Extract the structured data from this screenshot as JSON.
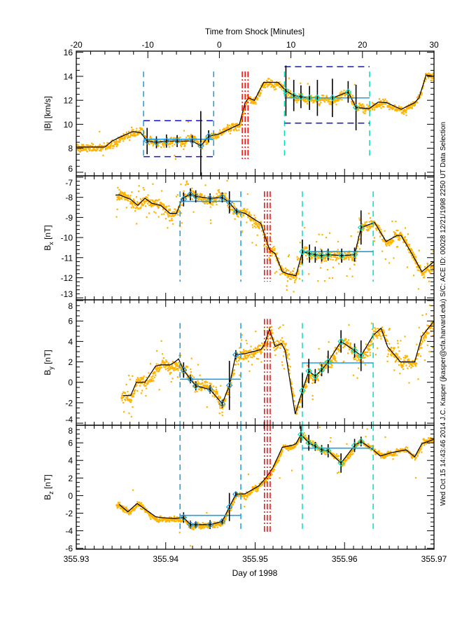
{
  "chart_data": {
    "type": "line",
    "top_axis": {
      "title": "Time from Shock [Minutes]",
      "range": [
        -20,
        30
      ],
      "ticks": [
        "-20",
        "-10",
        "0",
        "10",
        "20",
        "30"
      ]
    },
    "bottom_axis": {
      "title": "Day of 1998",
      "range": [
        355.93,
        355.97
      ],
      "ticks": [
        "355.93",
        "355.94",
        "355.95",
        "355.96",
        "355.97"
      ]
    },
    "x_units": "minutes from shock",
    "footer": "Wed Oct 15 14:43:46 2014   J.C. Kasper (jkasper@cfa.harvard.edu)   S/C: ACE ID: 00028 12/21/1998   2250 UT Data Selection",
    "colors": {
      "scatter": "#FFB300",
      "line": "#000000",
      "upstream": "#1E9BE0",
      "downstream": "#00E0C4",
      "box": "#1010E8",
      "shock": "#FF0000"
    },
    "panels": [
      {
        "ylabel_main": "|B|",
        "ylabel_sub": "",
        "ylabel_unit": "[km/s]",
        "ylim": [
          5.7,
          16.1
        ],
        "yticks": [
          "6",
          "8",
          "10",
          "12",
          "14",
          "16"
        ],
        "scatter": {
          "x_range": [
            -20,
            30
          ],
          "spread": 0.3,
          "outliers": 0.01
        },
        "line": [
          [
            -20,
            8.1
          ],
          [
            -16,
            8.1
          ],
          [
            -15,
            8.6
          ],
          [
            -14,
            8.9
          ],
          [
            -12.1,
            9.4
          ],
          [
            -11,
            9.3
          ],
          [
            -10.1,
            8.6
          ],
          [
            -8.8,
            8.5
          ],
          [
            -7.4,
            8.6
          ],
          [
            -5.9,
            8.6
          ],
          [
            -3.8,
            8.6
          ],
          [
            -2.6,
            8.2
          ],
          [
            -1.5,
            9.0
          ],
          [
            0,
            9.2
          ],
          [
            2.8,
            10.0
          ],
          [
            3.6,
            11.8
          ],
          [
            4.1,
            12.2
          ],
          [
            4.9,
            12.0
          ],
          [
            6.2,
            13.5
          ],
          [
            8.2,
            13.5
          ],
          [
            9.3,
            12.8
          ],
          [
            10.4,
            12.4
          ],
          [
            11.4,
            12.3
          ],
          [
            12.6,
            12.2
          ],
          [
            13.7,
            12.2
          ],
          [
            15.8,
            12.2
          ],
          [
            18.0,
            12.7
          ],
          [
            19.1,
            11.4
          ],
          [
            20.9,
            11.3
          ],
          [
            22.2,
            11.85
          ],
          [
            23.4,
            11.8
          ],
          [
            25.4,
            11.25
          ],
          [
            27.3,
            11.8
          ],
          [
            27.9,
            12.2
          ],
          [
            28.9,
            14.1
          ],
          [
            30,
            14.0
          ]
        ],
        "windows": [
          {
            "start": -10.6,
            "end": -0.8,
            "avg": 8.75,
            "upper": 10.3,
            "lower": 7.3,
            "markers": [
              [
                -10.1,
                8.6,
                1.1
              ],
              [
                -8.8,
                8.5,
                0.5
              ],
              [
                -7.4,
                8.6,
                0.55
              ],
              [
                -5.9,
                8.6,
                0.5
              ],
              [
                -3.8,
                8.6,
                0.5
              ],
              [
                -2.6,
                8.2,
                2.9
              ],
              [
                -1.5,
                9.0,
                0.5
              ]
            ]
          },
          {
            "start": 9.1,
            "end": 21.0,
            "avg": 12.2,
            "upper": 14.8,
            "lower": 10.1,
            "markers": [
              [
                9.3,
                12.8,
                2.1
              ],
              [
                10.4,
                12.4,
                1.3
              ],
              [
                11.4,
                12.3,
                0.95
              ],
              [
                12.6,
                12.2,
                1.0
              ],
              [
                13.7,
                12.2,
                1.5
              ],
              [
                15.8,
                12.2,
                1.6
              ],
              [
                18.0,
                12.7,
                0.9
              ],
              [
                19.1,
                11.4,
                1.9
              ]
            ]
          }
        ],
        "vline_range": [
          7.3,
          14.4
        ],
        "shock_lines": [
          3.2,
          3.6,
          4.0
        ],
        "shock_range": [
          7.1,
          14.4
        ]
      },
      {
        "ylabel_main": "B",
        "ylabel_sub": "x",
        "ylabel_unit": "[nT]",
        "ylim": [
          -13.1,
          -6.93
        ],
        "yticks": [
          "-13",
          "-12",
          "-11",
          "-10",
          "-9",
          "-8",
          "-7"
        ],
        "scatter": {
          "x_range": [
            -14.5,
            30
          ],
          "spread": 0.22,
          "outliers": 0.12
        },
        "line": [
          [
            -14.5,
            -7.9
          ],
          [
            -14.0,
            -7.87
          ],
          [
            -12.4,
            -8.1
          ],
          [
            -11.4,
            -8.4
          ],
          [
            -10.4,
            -8.05
          ],
          [
            -9.4,
            -8.3
          ],
          [
            -8.2,
            -8.4
          ],
          [
            -6.9,
            -8.8
          ],
          [
            -6.0,
            -8.8
          ],
          [
            -5.2,
            -8.05
          ],
          [
            -4.05,
            -7.85
          ],
          [
            -3.3,
            -7.95
          ],
          [
            -1.3,
            -8.05
          ],
          [
            0.4,
            -8.0
          ],
          [
            1.4,
            -8.25
          ],
          [
            2.4,
            -8.7
          ],
          [
            3.6,
            -8.8
          ],
          [
            5.8,
            -9.3
          ],
          [
            6.3,
            -9.85
          ],
          [
            7.0,
            -10.6
          ],
          [
            7.8,
            -10.8
          ],
          [
            8.8,
            -11.7
          ],
          [
            9.5,
            -11.8
          ],
          [
            10.7,
            -11.9
          ],
          [
            11.6,
            -10.7
          ],
          [
            12.6,
            -10.8
          ],
          [
            13.4,
            -10.85
          ],
          [
            14.3,
            -10.9
          ],
          [
            15.2,
            -10.85
          ],
          [
            17.1,
            -10.9
          ],
          [
            18.9,
            -10.85
          ],
          [
            19.8,
            -9.5
          ],
          [
            21.7,
            -9.25
          ],
          [
            23.3,
            -10.2
          ],
          [
            24.8,
            -9.9
          ],
          [
            25.4,
            -9.9
          ],
          [
            26.9,
            -10.8
          ],
          [
            28.3,
            -11.7
          ],
          [
            30,
            -11.2
          ]
        ],
        "windows": [
          {
            "start": -5.5,
            "end": 3.0,
            "avg": -8.2,
            "markers": [
              [
                -5.0,
                -8.1,
                0.35
              ],
              [
                -4.05,
                -7.85,
                0.3
              ],
              [
                -3.3,
                -7.95,
                0.3
              ],
              [
                -1.3,
                -8.05,
                0.25
              ],
              [
                0.4,
                -8.0,
                0.25
              ],
              [
                1.4,
                -8.25,
                0.55
              ],
              [
                2.4,
                -8.7,
                0.17
              ]
            ]
          },
          {
            "start": 11.6,
            "end": 21.5,
            "avg": -10.7,
            "markers": [
              [
                11.6,
                -10.7,
                0.6
              ],
              [
                12.6,
                -10.8,
                0.45
              ],
              [
                13.4,
                -10.85,
                0.4
              ],
              [
                14.3,
                -10.9,
                0.3
              ],
              [
                15.2,
                -10.85,
                0.3
              ],
              [
                17.1,
                -10.9,
                0.35
              ],
              [
                18.9,
                -10.85,
                0.35
              ],
              [
                19.8,
                -9.5,
                0.85
              ]
            ]
          }
        ],
        "vline_range": [
          -12.2,
          -7.7
        ],
        "shock_lines": [
          6.3,
          6.7,
          7.1
        ],
        "shock_range": [
          -12.2,
          -7.7
        ]
      },
      {
        "ylabel_main": "B",
        "ylabel_sub": "y",
        "ylabel_unit": "[nT]",
        "ylim": [
          -4.2,
          8.07
        ],
        "yticks": [
          "-4",
          "-2",
          "0",
          "2",
          "4",
          "6",
          "8"
        ],
        "scatter": {
          "x_range": [
            -13.8,
            30
          ],
          "spread": 0.5,
          "outliers": 0.12
        },
        "line": [
          [
            -13.5,
            -1.3
          ],
          [
            -12.4,
            -1.3
          ],
          [
            -11.6,
            0.0
          ],
          [
            -10.4,
            0.0
          ],
          [
            -8.9,
            1.6
          ],
          [
            -8.2,
            1.7
          ],
          [
            -6.9,
            1.7
          ],
          [
            -6.2,
            2.0
          ],
          [
            -5.7,
            2.3
          ],
          [
            -5.0,
            1.2
          ],
          [
            -4.05,
            0.3
          ],
          [
            -3.3,
            -0.35
          ],
          [
            -1.3,
            -0.7
          ],
          [
            0.4,
            -2.1
          ],
          [
            1.4,
            -0.3
          ],
          [
            2.3,
            2.7
          ],
          [
            3.6,
            2.8
          ],
          [
            5.8,
            3.2
          ],
          [
            6.3,
            3.7
          ],
          [
            7.0,
            5.2
          ],
          [
            7.8,
            3.5
          ],
          [
            8.7,
            3.8
          ],
          [
            9.2,
            3.1
          ],
          [
            10.6,
            -3.1
          ],
          [
            11.6,
            -0.8
          ],
          [
            12.5,
            1.1
          ],
          [
            13.4,
            0.6
          ],
          [
            14.3,
            1.2
          ],
          [
            15.2,
            2.0
          ],
          [
            17.0,
            4.0
          ],
          [
            18.9,
            3.1
          ],
          [
            19.8,
            2.6
          ],
          [
            21.5,
            4.6
          ],
          [
            22.6,
            5.3
          ],
          [
            23.5,
            3.5
          ],
          [
            25.3,
            2.0
          ],
          [
            27.3,
            2.0
          ],
          [
            28.3,
            4.5
          ],
          [
            29.2,
            5.3
          ],
          [
            30,
            6.0
          ]
        ],
        "windows": [
          {
            "start": -5.5,
            "end": 3.0,
            "avg": 0.3,
            "markers": [
              [
                -5.0,
                1.2,
                0.75
              ],
              [
                -4.05,
                0.3,
                0.4
              ],
              [
                -3.3,
                -0.35,
                0.45
              ],
              [
                -1.3,
                -0.7,
                0.4
              ],
              [
                0.4,
                -2.1,
                0.4
              ],
              [
                1.4,
                -0.3,
                2.4
              ],
              [
                2.3,
                2.7,
                0.45
              ]
            ]
          },
          {
            "start": 11.6,
            "end": 21.5,
            "avg": 1.9,
            "markers": [
              [
                11.6,
                -0.8,
                1.7
              ],
              [
                12.5,
                1.1,
                1.2
              ],
              [
                13.4,
                0.6,
                0.7
              ],
              [
                14.3,
                1.2,
                0.6
              ],
              [
                15.2,
                2.0,
                1.1
              ],
              [
                17.0,
                4.0,
                1.1
              ],
              [
                18.9,
                3.1,
                0.7
              ],
              [
                19.8,
                2.6,
                1.5
              ]
            ]
          }
        ],
        "vline_range": [
          -4.2,
          5.8
        ],
        "shock_lines": [
          6.3,
          6.7,
          7.1
        ],
        "shock_range": [
          -4.2,
          6.2
        ]
      },
      {
        "ylabel_main": "B",
        "ylabel_sub": "z",
        "ylabel_unit": "[nT]",
        "ylim": [
          -6.1,
          8.0
        ],
        "yticks": [
          "-6",
          "-4",
          "-2",
          "0",
          "2",
          "4",
          "6",
          "8"
        ],
        "scatter": {
          "x_range": [
            -14.5,
            30
          ],
          "spread": 0.3,
          "outliers": 0.02
        },
        "line": [
          [
            -14.0,
            -1.0
          ],
          [
            -12.8,
            -1.85
          ],
          [
            -11.5,
            -0.9
          ],
          [
            -10.3,
            -1.6
          ],
          [
            -8.9,
            -2.4
          ],
          [
            -8.2,
            -2.5
          ],
          [
            -6.2,
            -2.6
          ],
          [
            -5.0,
            -2.5
          ],
          [
            -4.05,
            -3.3
          ],
          [
            -3.3,
            -3.3
          ],
          [
            -1.3,
            -3.3
          ],
          [
            0.4,
            -2.95
          ],
          [
            1.4,
            -1.3
          ],
          [
            2.3,
            0.15
          ],
          [
            3.6,
            0.2
          ],
          [
            5.5,
            1.1
          ],
          [
            6.5,
            2.0
          ],
          [
            7.5,
            3.2
          ],
          [
            8.8,
            5.5
          ],
          [
            10.1,
            5.7
          ],
          [
            10.7,
            5.9
          ],
          [
            11.4,
            6.95
          ],
          [
            12.5,
            6.0
          ],
          [
            13.4,
            5.6
          ],
          [
            14.3,
            5.2
          ],
          [
            15.2,
            5.1
          ],
          [
            17.0,
            3.7
          ],
          [
            18.9,
            5.7
          ],
          [
            19.8,
            6.15
          ],
          [
            21.5,
            5.2
          ],
          [
            22.5,
            4.5
          ],
          [
            24.1,
            4.9
          ],
          [
            26.1,
            5.2
          ],
          [
            27.3,
            4.4
          ],
          [
            28.3,
            5.9
          ],
          [
            30,
            6.4
          ]
        ],
        "windows": [
          {
            "start": -5.5,
            "end": 3.0,
            "avg": -2.25,
            "markers": [
              [
                -5.0,
                -2.5,
                0.6
              ],
              [
                -4.05,
                -3.3,
                0.45
              ],
              [
                -3.3,
                -3.3,
                0.4
              ],
              [
                -1.3,
                -3.3,
                0.5
              ],
              [
                0.4,
                -2.95,
                0.35
              ],
              [
                1.4,
                -1.3,
                1.6
              ],
              [
                2.3,
                0.15,
                0.3
              ]
            ]
          },
          {
            "start": 11.6,
            "end": 21.5,
            "avg": 5.4,
            "markers": [
              [
                11.4,
                6.95,
                0.95
              ],
              [
                12.5,
                6.0,
                0.9
              ],
              [
                13.4,
                5.6,
                0.5
              ],
              [
                14.3,
                5.2,
                0.55
              ],
              [
                15.2,
                5.1,
                0.75
              ],
              [
                17.0,
                3.7,
                1.1
              ],
              [
                18.9,
                5.7,
                0.75
              ],
              [
                19.8,
                6.15,
                0.55
              ]
            ]
          }
        ],
        "vline_range": [
          -4.25,
          8.0
        ],
        "shock_lines": [
          6.3,
          6.7,
          7.1
        ],
        "shock_range": [
          -4.25,
          8.0
        ]
      }
    ]
  }
}
